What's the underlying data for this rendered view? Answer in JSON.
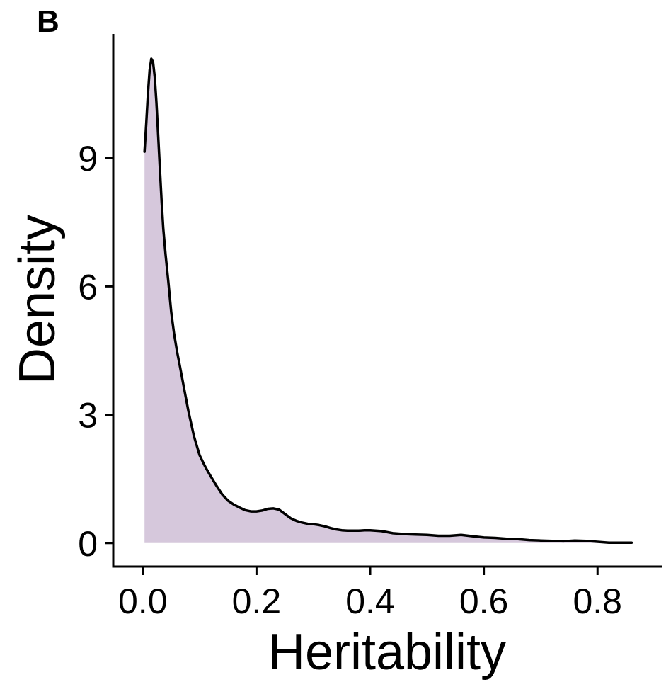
{
  "panel_label": "B",
  "colors": {
    "fill": "#d6c8dc",
    "line": "#000000",
    "axis": "#000000"
  },
  "chart_data": {
    "type": "area",
    "title": "",
    "xlabel": "Heritability",
    "ylabel": "Density",
    "xlim": [
      -0.052,
      0.913
    ],
    "ylim": [
      -0.55,
      11.9
    ],
    "x_ticks": [
      0.0,
      0.2,
      0.4,
      0.6,
      0.8
    ],
    "x_tick_labels": [
      "0.0",
      "0.2",
      "0.4",
      "0.6",
      "0.8"
    ],
    "y_ticks": [
      0,
      3,
      6,
      9
    ],
    "y_tick_labels": [
      "0",
      "3",
      "6",
      "9"
    ],
    "grid": false,
    "legend": "none",
    "series": [
      {
        "x": [
          0.003,
          0.006,
          0.009,
          0.012,
          0.015,
          0.018,
          0.021,
          0.024,
          0.027,
          0.03,
          0.033,
          0.036,
          0.04,
          0.045,
          0.05,
          0.055,
          0.06,
          0.065,
          0.07,
          0.08,
          0.09,
          0.1,
          0.11,
          0.12,
          0.13,
          0.14,
          0.15,
          0.16,
          0.17,
          0.18,
          0.19,
          0.2,
          0.21,
          0.22,
          0.23,
          0.24,
          0.25,
          0.26,
          0.27,
          0.28,
          0.29,
          0.3,
          0.31,
          0.32,
          0.33,
          0.34,
          0.35,
          0.36,
          0.37,
          0.38,
          0.39,
          0.4,
          0.42,
          0.44,
          0.46,
          0.48,
          0.5,
          0.52,
          0.54,
          0.56,
          0.58,
          0.6,
          0.62,
          0.64,
          0.66,
          0.68,
          0.7,
          0.72,
          0.74,
          0.75,
          0.76,
          0.78,
          0.8,
          0.82,
          0.84,
          0.86
        ],
        "y": [
          9.15,
          9.8,
          10.5,
          11.05,
          11.32,
          11.25,
          10.9,
          10.3,
          9.55,
          8.75,
          8.0,
          7.35,
          6.75,
          6.1,
          5.4,
          4.9,
          4.5,
          4.15,
          3.8,
          3.1,
          2.5,
          2.05,
          1.78,
          1.55,
          1.33,
          1.13,
          0.99,
          0.9,
          0.83,
          0.77,
          0.74,
          0.74,
          0.76,
          0.8,
          0.81,
          0.78,
          0.68,
          0.58,
          0.52,
          0.48,
          0.45,
          0.44,
          0.42,
          0.39,
          0.35,
          0.32,
          0.3,
          0.29,
          0.29,
          0.29,
          0.3,
          0.3,
          0.28,
          0.23,
          0.21,
          0.2,
          0.19,
          0.17,
          0.17,
          0.19,
          0.16,
          0.13,
          0.12,
          0.1,
          0.09,
          0.07,
          0.06,
          0.05,
          0.04,
          0.05,
          0.06,
          0.05,
          0.03,
          0.01,
          0.01,
          0.01
        ]
      }
    ]
  }
}
